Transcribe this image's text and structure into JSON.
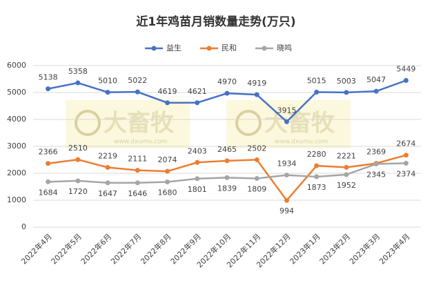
{
  "chart_data": {
    "type": "line",
    "title": "近1年鸡苗月销数量走势(万只)",
    "categories": [
      "2022年4月",
      "2022年5月",
      "2022年6月",
      "2022年7月",
      "2022年8月",
      "2022年9月",
      "2022年10月",
      "2022年11月",
      "2022年12月",
      "2023年1月",
      "2023年2月",
      "2023年3月",
      "2023年4月"
    ],
    "series": [
      {
        "name": "益生",
        "color": "#4472c4",
        "values": [
          5138,
          5358,
          5010,
          5022,
          4619,
          4621,
          4970,
          4919,
          3915,
          5015,
          5003,
          5047,
          5449
        ]
      },
      {
        "name": "民和",
        "color": "#ed7d31",
        "values": [
          2366,
          2510,
          2219,
          2111,
          2074,
          2403,
          2465,
          2502,
          994,
          2280,
          2221,
          2369,
          2674
        ]
      },
      {
        "name": "晓鸣",
        "color": "#a5a5a5",
        "values": [
          1684,
          1720,
          1647,
          1646,
          1680,
          1801,
          1839,
          1809,
          1934,
          1873,
          1952,
          2345,
          2374
        ]
      }
    ],
    "ylim": [
      0,
      6000
    ],
    "yticks": [
      0,
      1000,
      2000,
      3000,
      4000,
      5000,
      6000
    ],
    "grid": true,
    "legend": "top",
    "watermark": {
      "text": "大畜牧",
      "url": "www.dxumu.com"
    }
  }
}
